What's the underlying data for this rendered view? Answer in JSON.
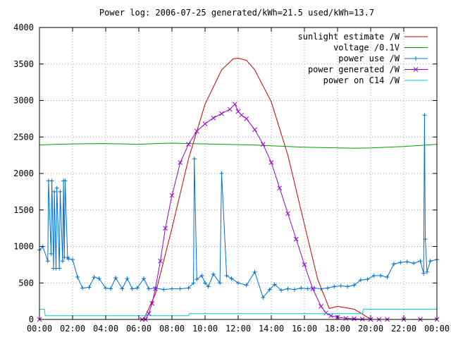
{
  "chart_data": {
    "type": "line",
    "title": "Power log: 2006-07-25 generated/kWh=21.5 used/kWh=13.7",
    "xlabel": "",
    "ylabel": "",
    "xlim": [
      0,
      24
    ],
    "ylim": [
      0,
      4000
    ],
    "grid": true,
    "legend_position": "top-right",
    "x_ticks": [
      {
        "value": 0,
        "label": "00:00"
      },
      {
        "value": 2,
        "label": "02:00"
      },
      {
        "value": 4,
        "label": "04:00"
      },
      {
        "value": 6,
        "label": "06:00"
      },
      {
        "value": 8,
        "label": "08:00"
      },
      {
        "value": 10,
        "label": "10:00"
      },
      {
        "value": 12,
        "label": "12:00"
      },
      {
        "value": 14,
        "label": "14:00"
      },
      {
        "value": 16,
        "label": "16:00"
      },
      {
        "value": 18,
        "label": "18:00"
      },
      {
        "value": 20,
        "label": "20:00"
      },
      {
        "value": 22,
        "label": "22:00"
      },
      {
        "value": 24,
        "label": "00:00"
      }
    ],
    "y_ticks": [
      {
        "value": 0,
        "label": "0"
      },
      {
        "value": 500,
        "label": "500"
      },
      {
        "value": 1000,
        "label": "1000"
      },
      {
        "value": 1500,
        "label": "1500"
      },
      {
        "value": 2000,
        "label": "2000"
      },
      {
        "value": 2500,
        "label": "2500"
      },
      {
        "value": 3000,
        "label": "3000"
      },
      {
        "value": 3500,
        "label": "3500"
      },
      {
        "value": 4000,
        "label": "4000"
      }
    ],
    "series": [
      {
        "name": "sunlight estimate /W",
        "color": "#cc0000",
        "marker": "none",
        "x": [
          0,
          6.3,
          7.0,
          8.0,
          9.0,
          10.0,
          11.0,
          11.7,
          12.0,
          12.5,
          13.0,
          14.0,
          15.0,
          16.0,
          16.8,
          17.5,
          18.0,
          19.0,
          19.6,
          20.0,
          24
        ],
        "y": [
          0,
          0,
          350,
          1250,
          2200,
          2950,
          3420,
          3570,
          3580,
          3550,
          3420,
          2980,
          2250,
          1300,
          550,
          150,
          180,
          140,
          60,
          0,
          0
        ]
      },
      {
        "name": "voltage /0.1V",
        "color": "#00a000",
        "marker": "none",
        "x": [
          0,
          1,
          2,
          3,
          4,
          5,
          6,
          7,
          8,
          9,
          10,
          11,
          12,
          13,
          14,
          15,
          16,
          17,
          18,
          19,
          20,
          21,
          22,
          23,
          24
        ],
        "y": [
          2390,
          2400,
          2405,
          2408,
          2410,
          2405,
          2400,
          2410,
          2415,
          2410,
          2405,
          2400,
          2395,
          2390,
          2380,
          2370,
          2360,
          2355,
          2350,
          2345,
          2350,
          2360,
          2370,
          2385,
          2400
        ]
      },
      {
        "name": "power use /W",
        "color": "#0070d0",
        "marker": "plus",
        "x": [
          0,
          0.2,
          0.5,
          0.55,
          0.7,
          0.75,
          0.85,
          0.9,
          1.0,
          1.05,
          1.2,
          1.25,
          1.4,
          1.45,
          1.5,
          1.55,
          1.7,
          1.75,
          2.0,
          2.3,
          2.6,
          3.0,
          3.3,
          3.6,
          4.0,
          4.3,
          4.6,
          5.0,
          5.3,
          5.6,
          5.9,
          6.3,
          6.6,
          7.0,
          7.5,
          8.0,
          8.5,
          9.0,
          9.3,
          9.35,
          9.5,
          9.8,
          10.0,
          10.2,
          10.5,
          10.9,
          11.0,
          11.3,
          11.6,
          12.0,
          12.5,
          13.0,
          13.5,
          13.9,
          14.2,
          14.6,
          15.0,
          15.4,
          15.8,
          16.2,
          16.6,
          17.0,
          17.4,
          17.8,
          18.2,
          18.6,
          19.0,
          19.4,
          19.8,
          20.2,
          20.6,
          21.0,
          21.4,
          21.8,
          22.2,
          22.6,
          23.0,
          23.2,
          23.25,
          23.3,
          23.4,
          23.6,
          24.0
        ],
        "y": [
          950,
          1000,
          800,
          1900,
          900,
          1900,
          700,
          1750,
          700,
          1800,
          700,
          1750,
          800,
          1900,
          850,
          1900,
          850,
          830,
          820,
          580,
          430,
          440,
          580,
          560,
          430,
          420,
          570,
          420,
          560,
          420,
          430,
          560,
          420,
          430,
          410,
          420,
          420,
          430,
          500,
          2200,
          550,
          600,
          500,
          450,
          620,
          500,
          2000,
          600,
          560,
          500,
          470,
          650,
          300,
          410,
          480,
          400,
          420,
          410,
          430,
          420,
          430,
          420,
          430,
          450,
          460,
          450,
          470,
          540,
          550,
          600,
          600,
          580,
          760,
          780,
          790,
          770,
          800,
          630,
          2800,
          1100,
          650,
          800,
          820
        ]
      },
      {
        "name": "power generated /W",
        "color": "#9900cc",
        "marker": "cross",
        "x": [
          0,
          6.2,
          6.4,
          6.6,
          6.8,
          7.0,
          7.3,
          7.6,
          8.0,
          8.5,
          9.0,
          9.5,
          10.0,
          10.5,
          11.0,
          11.5,
          11.8,
          12.0,
          12.2,
          12.5,
          13.0,
          13.5,
          14.0,
          14.5,
          15.0,
          15.5,
          16.0,
          16.5,
          17.0,
          17.3,
          17.6,
          18.0,
          18.5,
          19.0,
          19.5,
          20.0,
          20.5,
          21.0,
          22.0,
          23.0,
          24.0
        ],
        "y": [
          0,
          0,
          0,
          80,
          220,
          420,
          800,
          1250,
          1700,
          2150,
          2400,
          2580,
          2680,
          2760,
          2820,
          2880,
          2950,
          2850,
          2800,
          2750,
          2600,
          2400,
          2150,
          1800,
          1450,
          1100,
          750,
          420,
          180,
          90,
          50,
          30,
          15,
          10,
          5,
          0,
          0,
          0,
          0,
          0,
          0
        ]
      },
      {
        "name": "power on C14 /W",
        "color": "#00cccc",
        "marker": "none",
        "x": [
          0,
          0.3,
          0.35,
          0.8,
          1.0,
          6.0,
          9.0,
          9.05,
          12.0,
          18.0,
          19.0,
          19.5,
          19.55,
          24.0
        ],
        "y": [
          140,
          140,
          50,
          50,
          50,
          50,
          50,
          80,
          80,
          80,
          80,
          80,
          140,
          140
        ]
      }
    ]
  }
}
